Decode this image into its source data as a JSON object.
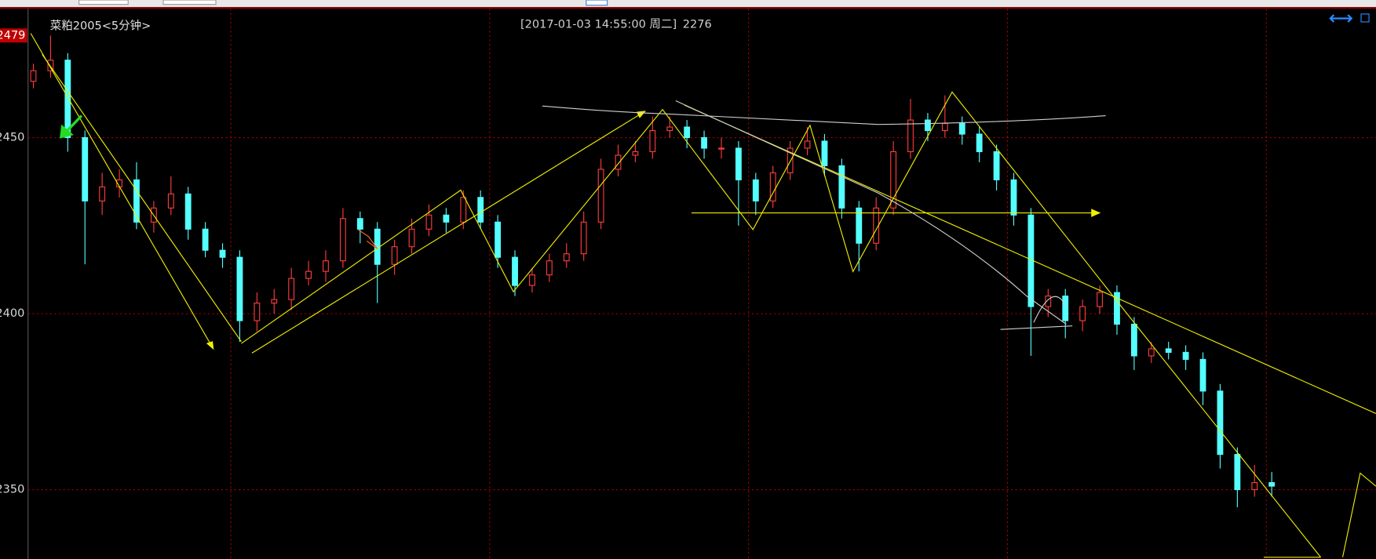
{
  "chart_data": {
    "type": "candlestick",
    "title": "菜粕2005<5分钟>",
    "cursor": {
      "time": "[2017-01-03  14:55:00 周二]",
      "value": 2276
    },
    "marker_price": 2479,
    "ylim": [
      2330.3,
      2486.6
    ],
    "yticks": [
      2350,
      2400,
      2450
    ],
    "grid": true,
    "up_color": "#ff3c3c",
    "down_color": "#54ffff",
    "ohlc": [
      [
        2466,
        2471,
        2464,
        2469
      ],
      [
        2469,
        2479,
        2467,
        2472
      ],
      [
        2472,
        2474,
        2446,
        2450
      ],
      [
        2450,
        2452,
        2414,
        2432
      ],
      [
        2432,
        2440,
        2428,
        2436
      ],
      [
        2436,
        2441,
        2433,
        2438
      ],
      [
        2438,
        2443,
        2424,
        2426
      ],
      [
        2426,
        2432,
        2423,
        2430
      ],
      [
        2430,
        2439,
        2428,
        2434
      ],
      [
        2434,
        2436,
        2421,
        2424
      ],
      [
        2424,
        2426,
        2416,
        2418
      ],
      [
        2418,
        2420,
        2413,
        2416
      ],
      [
        2416,
        2418,
        2392,
        2398
      ],
      [
        2398,
        2406,
        2395,
        2403
      ],
      [
        2403,
        2407,
        2400,
        2404
      ],
      [
        2404,
        2413,
        2401,
        2410
      ],
      [
        2410,
        2415,
        2408,
        2412
      ],
      [
        2412,
        2418,
        2409,
        2415
      ],
      [
        2415,
        2430,
        2413,
        2427
      ],
      [
        2427,
        2429,
        2420,
        2424
      ],
      [
        2424,
        2426,
        2403,
        2414
      ],
      [
        2414,
        2421,
        2411,
        2419
      ],
      [
        2419,
        2427,
        2417,
        2424
      ],
      [
        2424,
        2431,
        2422,
        2428
      ],
      [
        2428,
        2430,
        2423,
        2426
      ],
      [
        2426,
        2435,
        2424,
        2433
      ],
      [
        2433,
        2435,
        2424,
        2426
      ],
      [
        2426,
        2428,
        2413,
        2416
      ],
      [
        2416,
        2418,
        2405,
        2408
      ],
      [
        2408,
        2413,
        2406,
        2411
      ],
      [
        2411,
        2417,
        2409,
        2415
      ],
      [
        2415,
        2420,
        2413,
        2417
      ],
      [
        2417,
        2429,
        2415,
        2426
      ],
      [
        2426,
        2444,
        2424,
        2441
      ],
      [
        2441,
        2448,
        2439,
        2445
      ],
      [
        2445,
        2449,
        2443,
        2446
      ],
      [
        2446,
        2456,
        2444,
        2452
      ],
      [
        2452,
        2456,
        2450,
        2453
      ],
      [
        2453,
        2455,
        2447,
        2450
      ],
      [
        2450,
        2452,
        2444,
        2447
      ],
      [
        2447,
        2450,
        2444,
        2447
      ],
      [
        2447,
        2449,
        2425,
        2438
      ],
      [
        2438,
        2440,
        2428,
        2432
      ],
      [
        2432,
        2442,
        2430,
        2440
      ],
      [
        2440,
        2449,
        2438,
        2447
      ],
      [
        2447,
        2453,
        2445,
        2449
      ],
      [
        2449,
        2451,
        2439,
        2442
      ],
      [
        2442,
        2444,
        2427,
        2430
      ],
      [
        2430,
        2432,
        2412,
        2420
      ],
      [
        2420,
        2433,
        2418,
        2430
      ],
      [
        2430,
        2449,
        2428,
        2446
      ],
      [
        2446,
        2461,
        2444,
        2455
      ],
      [
        2455,
        2457,
        2449,
        2452
      ],
      [
        2452,
        2462,
        2450,
        2454
      ],
      [
        2454,
        2456,
        2448,
        2451
      ],
      [
        2451,
        2453,
        2443,
        2446
      ],
      [
        2446,
        2448,
        2435,
        2438
      ],
      [
        2438,
        2440,
        2425,
        2428
      ],
      [
        2428,
        2430,
        2388,
        2402
      ],
      [
        2402,
        2407,
        2399,
        2405
      ],
      [
        2405,
        2407,
        2393,
        2398
      ],
      [
        2398,
        2404,
        2395,
        2402
      ],
      [
        2402,
        2408,
        2400,
        2406
      ],
      [
        2406,
        2408,
        2394,
        2397
      ],
      [
        2397,
        2399,
        2384,
        2388
      ],
      [
        2388,
        2392,
        2386,
        2390
      ],
      [
        2390,
        2392,
        2387,
        2389
      ],
      [
        2389,
        2391,
        2384,
        2387
      ],
      [
        2387,
        2389,
        2374,
        2378
      ],
      [
        2378,
        2380,
        2356,
        2360
      ],
      [
        2360,
        2362,
        2345,
        2350
      ],
      [
        2350,
        2357,
        2348,
        2352
      ],
      [
        2352,
        2355,
        2348,
        2351
      ]
    ]
  }
}
